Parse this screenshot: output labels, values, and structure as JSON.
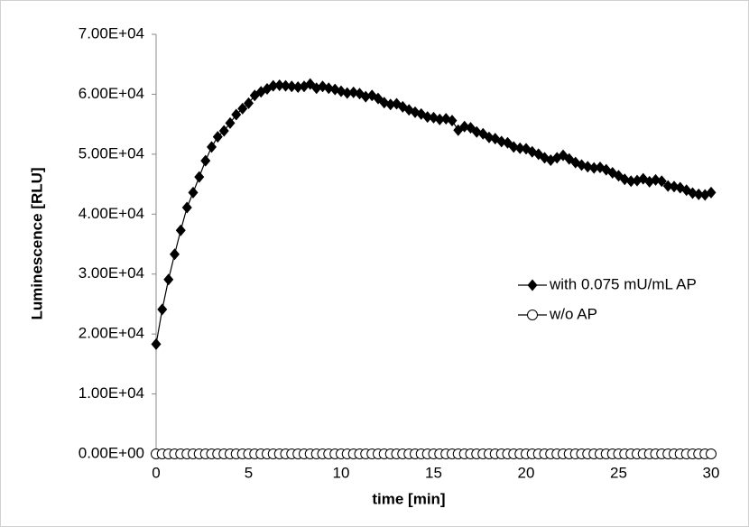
{
  "chart_data": {
    "type": "line",
    "x_label": "time [min]",
    "y_label": "Luminescence [RLU]",
    "x": [
      0,
      0.33,
      0.67,
      1,
      1.33,
      1.67,
      2,
      2.33,
      2.67,
      3,
      3.33,
      3.67,
      4,
      4.33,
      4.67,
      5,
      5.33,
      5.67,
      6,
      6.33,
      6.67,
      7,
      7.33,
      7.67,
      8,
      8.33,
      8.67,
      9,
      9.33,
      9.67,
      10,
      10.33,
      10.67,
      11,
      11.33,
      11.67,
      12,
      12.33,
      12.67,
      13,
      13.33,
      13.67,
      14,
      14.33,
      14.67,
      15,
      15.33,
      15.67,
      16,
      16.33,
      16.67,
      17,
      17.33,
      17.67,
      18,
      18.33,
      18.67,
      19,
      19.33,
      19.67,
      20,
      20.33,
      20.67,
      21,
      21.33,
      21.67,
      22,
      22.33,
      22.67,
      23,
      23.33,
      23.67,
      24,
      24.33,
      24.67,
      25,
      25.33,
      25.67,
      26,
      26.33,
      26.67,
      27,
      27.33,
      27.67,
      28,
      28.33,
      28.67,
      29,
      29.33,
      29.67,
      30
    ],
    "series": [
      {
        "name": "with 0.075 mU/mL AP",
        "color": "#000000",
        "marker": "diamond",
        "values": [
          18300,
          24100,
          29100,
          33300,
          37300,
          41100,
          43600,
          46200,
          48900,
          51200,
          52900,
          53900,
          55200,
          56600,
          57600,
          58500,
          59800,
          60400,
          60900,
          61400,
          61500,
          61400,
          61300,
          61200,
          61300,
          61700,
          61000,
          61300,
          61000,
          60800,
          60500,
          60200,
          60300,
          60100,
          59600,
          59800,
          59300,
          58600,
          58300,
          58400,
          57900,
          57400,
          57000,
          56700,
          56200,
          56100,
          55800,
          55900,
          55600,
          54000,
          54600,
          54400,
          53700,
          53400,
          52800,
          52600,
          52100,
          51900,
          51200,
          51000,
          50900,
          50400,
          50000,
          49400,
          49000,
          49400,
          49800,
          49200,
          48600,
          48200,
          47900,
          47700,
          47800,
          47400,
          46900,
          46400,
          45800,
          45500,
          45600,
          45900,
          45400,
          45700,
          45500,
          44700,
          44600,
          44400,
          44000,
          43500,
          43300,
          43200,
          43600
        ]
      },
      {
        "name": "w/o AP",
        "color": "#000000",
        "marker": "circle-open",
        "values": [
          0,
          0,
          0,
          0,
          0,
          0,
          0,
          0,
          0,
          0,
          0,
          0,
          0,
          0,
          0,
          0,
          0,
          0,
          0,
          0,
          0,
          0,
          0,
          0,
          0,
          0,
          0,
          0,
          0,
          0,
          0,
          0,
          0,
          0,
          0,
          0,
          0,
          0,
          0,
          0,
          0,
          0,
          0,
          0,
          0,
          0,
          0,
          0,
          0,
          0,
          0,
          0,
          0,
          0,
          0,
          0,
          0,
          0,
          0,
          0,
          0,
          0,
          0,
          0,
          0,
          0,
          0,
          0,
          0,
          0,
          0,
          0,
          0,
          0,
          0,
          0,
          0,
          0,
          0,
          0,
          0,
          0,
          0,
          0,
          0,
          0,
          0,
          0,
          0,
          0,
          0
        ]
      }
    ],
    "xlim": [
      0,
      30
    ],
    "xticks": [
      0,
      5,
      10,
      15,
      20,
      25,
      30
    ],
    "ylim": [
      0,
      70000
    ],
    "yticks": [
      {
        "value": 0,
        "label": "0.00E+00"
      },
      {
        "value": 10000,
        "label": "1.00E+04"
      },
      {
        "value": 20000,
        "label": "2.00E+04"
      },
      {
        "value": 30000,
        "label": "3.00E+04"
      },
      {
        "value": 40000,
        "label": "4.00E+04"
      },
      {
        "value": 50000,
        "label": "5.00E+04"
      },
      {
        "value": 60000,
        "label": "6.00E+04"
      },
      {
        "value": 70000,
        "label": "7.00E+04"
      }
    ],
    "grid": false,
    "legend": "right"
  }
}
